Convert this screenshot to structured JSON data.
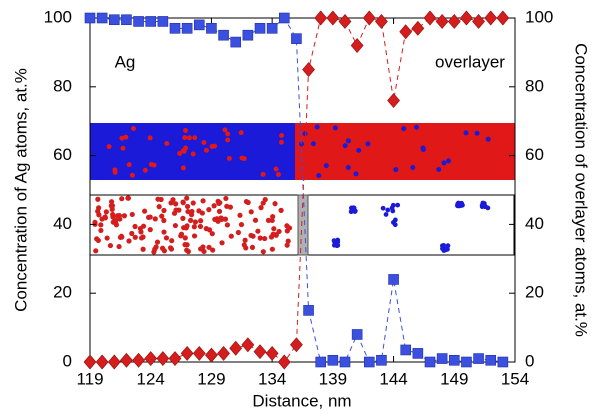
{
  "chart_data": {
    "type": "line",
    "xlabel": "Distance, nm",
    "ylabel": "Concentration of Ag atoms, at.%",
    "y2label": "Concentration of overlayer atoms, at.%",
    "annotations": [
      "Ag",
      "overlayer"
    ],
    "x": [
      119,
      120,
      121,
      122,
      123,
      124,
      125,
      126,
      127,
      128,
      129,
      130,
      131,
      132,
      133,
      134,
      135,
      136,
      137,
      138,
      139,
      140,
      141,
      142,
      143,
      144,
      145,
      146,
      147,
      148,
      149,
      150,
      151,
      152,
      153
    ],
    "series": [
      {
        "name": "Ag",
        "color": "#3b50e0",
        "marker": "square",
        "linestyle": "dashed",
        "values": [
          100,
          100,
          99.5,
          99.5,
          99,
          99,
          99,
          97,
          97,
          98,
          97,
          95,
          93,
          95,
          97,
          97,
          100,
          94,
          15,
          0,
          0.5,
          0,
          8,
          0,
          0.5,
          24,
          3.5,
          2.5,
          0,
          1,
          0.5,
          0,
          1,
          0.5,
          0
        ]
      },
      {
        "name": "overlayer",
        "color": "#d41e1e",
        "marker": "diamond",
        "linestyle": "dashed",
        "axis": "y2",
        "values": [
          0,
          0,
          0,
          0.5,
          0.5,
          1,
          1,
          1,
          2.5,
          2.5,
          2,
          2.5,
          4,
          5,
          3,
          2.5,
          0,
          5,
          85,
          100,
          100,
          99,
          92,
          100,
          99,
          76,
          96,
          97,
          100,
          99,
          99,
          100,
          99,
          100,
          100
        ]
      }
    ],
    "xlim": [
      119,
      154
    ],
    "xticks": [
      119,
      124,
      129,
      134,
      139,
      144,
      149,
      154
    ],
    "ylim": [
      0,
      100
    ],
    "yticks": [
      0,
      20,
      40,
      60,
      80,
      100
    ],
    "y2lim": [
      0,
      100
    ],
    "y2ticks": [
      0,
      20,
      40,
      60,
      80,
      100
    ],
    "grid": false
  }
}
